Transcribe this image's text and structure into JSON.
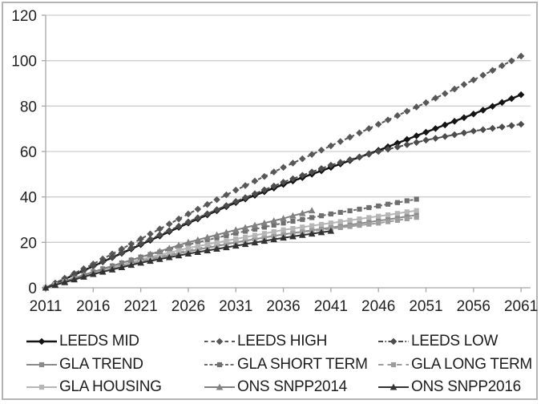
{
  "figure": {
    "background": "#ffffff",
    "border_color": "#b4b4b4"
  },
  "chart_data": {
    "type": "line",
    "title": "",
    "xlabel": "",
    "ylabel": "",
    "xlim": [
      2011,
      2062
    ],
    "ylim": [
      0,
      120
    ],
    "x_ticks": [
      2011,
      2016,
      2021,
      2026,
      2031,
      2036,
      2041,
      2046,
      2051,
      2056,
      2061
    ],
    "y_ticks": [
      0,
      20,
      40,
      60,
      80,
      100,
      120
    ],
    "grid": "horizontal-only",
    "gridline_color": "#cdcdcd",
    "axis_color": "#a6a6a6",
    "tick_label_color": "#212121",
    "legend_position": "bottom",
    "series": [
      {
        "name": "LEEDS MID",
        "color": "#141414",
        "line_style": "solid",
        "marker": "diamond",
        "line_width": 2.4,
        "start_year": 2011,
        "values": [
          0,
          1.9,
          3.8,
          5.7,
          7.6,
          9.5,
          11.4,
          13.3,
          15.2,
          17.1,
          19,
          20.9,
          22.8,
          24.7,
          26.6,
          28.5,
          30.3,
          32.1,
          33.9,
          35.7,
          37.5,
          39.1,
          40.7,
          42.3,
          43.9,
          45.5,
          47,
          48.5,
          50,
          51.5,
          53,
          54.5,
          56,
          57.5,
          59,
          60.5,
          62.1,
          63.7,
          65.3,
          66.9,
          68.5,
          70.1,
          71.7,
          73.3,
          74.9,
          76.5,
          78.2,
          79.9,
          81.6,
          83.3,
          85
        ]
      },
      {
        "name": "LEEDS HIGH",
        "color": "#585858",
        "line_style": "dash",
        "marker": "diamond",
        "line_width": 2,
        "start_year": 2011,
        "values": [
          0,
          2.1,
          4.2,
          6.3,
          8.4,
          10.5,
          12.7,
          14.9,
          17.1,
          19.3,
          21.5,
          23.7,
          25.9,
          28.1,
          30.3,
          32.5,
          34.6,
          36.7,
          38.8,
          40.9,
          43,
          45,
          47,
          49,
          51,
          53,
          54.9,
          56.8,
          58.7,
          60.6,
          62.5,
          64.4,
          66.3,
          68.2,
          70.1,
          72,
          73.9,
          75.8,
          77.7,
          79.6,
          81.5,
          83.5,
          85.5,
          87.5,
          89.5,
          91.5,
          93.6,
          95.7,
          97.8,
          99.9,
          102
        ]
      },
      {
        "name": "LEEDS LOW",
        "color": "#4c4c4c",
        "line_style": "dash-dot",
        "marker": "diamond",
        "line_width": 2,
        "start_year": 2011,
        "values": [
          0,
          1.9,
          3.8,
          5.7,
          7.6,
          9.5,
          11.5,
          13.5,
          15.5,
          17.5,
          19.5,
          21.4,
          23.3,
          25.2,
          27.1,
          29,
          30.8,
          32.6,
          34.4,
          36.2,
          38,
          39.7,
          41.4,
          43.1,
          44.8,
          46.5,
          48,
          49.5,
          51,
          52.5,
          54,
          55.2,
          56.4,
          57.6,
          58.8,
          60,
          61,
          62,
          63,
          64,
          65,
          65.8,
          66.6,
          67.4,
          68.2,
          69,
          69.6,
          70.2,
          70.8,
          71.4,
          72
        ]
      },
      {
        "name": "GLA TREND",
        "color": "#8a8a8a",
        "line_style": "solid",
        "marker": "square",
        "line_width": 2,
        "start_year": 2011,
        "values": [
          0,
          1.2,
          2.4,
          3.6,
          4.8,
          6,
          7.1,
          8.2,
          9.3,
          10.4,
          11.5,
          12.4,
          13.3,
          14.2,
          15.1,
          16,
          16.8,
          17.6,
          18.4,
          19.2,
          20,
          20.7,
          21.4,
          22.1,
          22.8,
          23.5,
          24.1,
          24.7,
          25.3,
          25.9,
          26.5,
          27.1,
          27.7,
          28.3,
          28.9,
          29.5,
          30.1,
          30.7,
          31.4,
          32
        ]
      },
      {
        "name": "GLA SHORT TERM",
        "color": "#6f6f6f",
        "line_style": "short-dash",
        "marker": "square",
        "line_width": 2,
        "start_year": 2011,
        "values": [
          0,
          1.4,
          2.8,
          4.2,
          5.6,
          7,
          8.3,
          9.6,
          10.9,
          12.2,
          13.5,
          14.6,
          15.7,
          16.8,
          17.9,
          19,
          20,
          21,
          22,
          23,
          24,
          24.9,
          25.8,
          26.7,
          27.6,
          28.5,
          29.3,
          30.1,
          30.9,
          31.7,
          32.5,
          33.2,
          33.9,
          34.6,
          35.3,
          36,
          36.8,
          37.5,
          38.3,
          39
        ]
      },
      {
        "name": "GLA LONG TERM",
        "color": "#9d9d9d",
        "line_style": "long-dash",
        "marker": "square",
        "line_width": 2,
        "start_year": 2011,
        "values": [
          0,
          1.3,
          2.6,
          3.9,
          5.2,
          6.5,
          7.6,
          8.7,
          9.8,
          10.9,
          12,
          12.9,
          13.8,
          14.7,
          15.6,
          16.5,
          17.3,
          18.1,
          18.9,
          19.7,
          20.5,
          21.1,
          21.7,
          22.3,
          22.9,
          23.5,
          24,
          24.5,
          25,
          25.5,
          26,
          26.5,
          27,
          27.5,
          28,
          28.5,
          29.1,
          29.7,
          30.4,
          31
        ]
      },
      {
        "name": "GLA HOUSING",
        "color": "#b6b6b6",
        "line_style": "solid",
        "marker": "square",
        "line_width": 2,
        "start_year": 2011,
        "values": [
          0,
          1.3,
          2.6,
          3.9,
          5.2,
          6.5,
          7.7,
          8.9,
          10.1,
          11.3,
          12.5,
          13.5,
          14.5,
          15.5,
          16.5,
          17.5,
          18.3,
          19.1,
          19.9,
          20.7,
          21.5,
          22.3,
          23.1,
          23.9,
          24.7,
          25.5,
          26.1,
          26.7,
          27.3,
          27.9,
          28.5,
          29.1,
          29.7,
          30.3,
          30.9,
          31.5,
          32.1,
          32.7,
          33.4,
          34
        ]
      },
      {
        "name": "ONS SNPP2014",
        "color": "#808080",
        "line_style": "solid",
        "marker": "triangle",
        "line_width": 2,
        "start_year": 2011,
        "values": [
          0,
          1.4,
          2.8,
          4.2,
          5.6,
          7,
          8.3,
          9.6,
          10.9,
          12.2,
          13.5,
          14.8,
          16.1,
          17.4,
          18.7,
          20,
          21.1,
          22.2,
          23.3,
          24.4,
          25.5,
          26.5,
          27.5,
          28.5,
          29.5,
          30.5,
          31.7,
          32.8,
          34
        ]
      },
      {
        "name": "ONS SNPP2016",
        "color": "#323232",
        "line_style": "solid",
        "marker": "triangle",
        "line_width": 2,
        "start_year": 2011,
        "values": [
          0,
          1.2,
          2.4,
          3.6,
          4.8,
          6,
          7,
          8,
          9,
          10,
          11,
          11.8,
          12.6,
          13.4,
          14.2,
          15,
          15.7,
          16.4,
          17.1,
          17.8,
          18.5,
          19.2,
          19.9,
          20.6,
          21.3,
          22,
          22.6,
          23.2,
          23.8,
          24.4,
          25
        ]
      }
    ]
  }
}
